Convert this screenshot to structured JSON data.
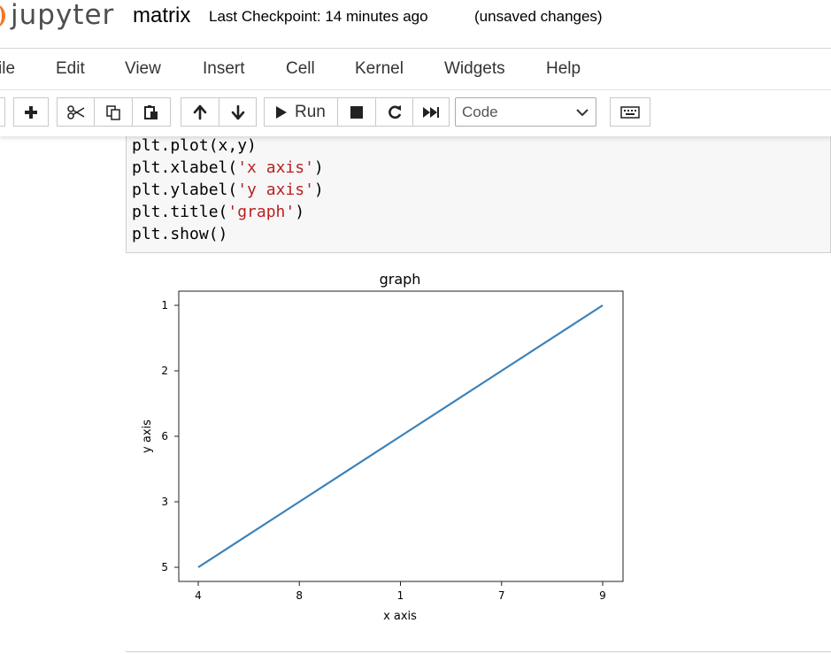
{
  "header": {
    "logo_text": "jupyter",
    "notebook_name": "matrix",
    "checkpoint": "Last Checkpoint: 14 minutes ago",
    "save_status": "(unsaved changes)"
  },
  "menu": [
    {
      "label": "ile"
    },
    {
      "label": "Edit"
    },
    {
      "label": "View"
    },
    {
      "label": "Insert"
    },
    {
      "label": "Cell"
    },
    {
      "label": "Kernel"
    },
    {
      "label": "Widgets"
    },
    {
      "label": "Help"
    }
  ],
  "toolbar": {
    "run_label": "Run",
    "cell_type": "Code",
    "icons": [
      "save-icon",
      "add-cell-icon",
      "cut-icon",
      "copy-icon",
      "paste-icon",
      "move-up-icon",
      "move-down-icon",
      "run-icon",
      "stop-icon",
      "restart-icon",
      "fast-forward-icon",
      "keyboard-icon"
    ]
  },
  "code_cell": {
    "lines": [
      {
        "pre": "plt.plot(x,y)",
        "str": "",
        "post": ""
      },
      {
        "pre": "plt.xlabel(",
        "str": "'x axis'",
        "post": ")"
      },
      {
        "pre": "plt.ylabel(",
        "str": "'y axis'",
        "post": ")"
      },
      {
        "pre": "plt.title(",
        "str": "'graph'",
        "post": ")"
      },
      {
        "pre": "plt.show()",
        "str": "",
        "post": ""
      }
    ]
  },
  "chart_data": {
    "type": "line",
    "title": "graph",
    "xlabel": "x axis",
    "ylabel": "y axis",
    "x_categories": [
      "4",
      "8",
      "1",
      "7",
      "9"
    ],
    "y_categories": [
      "5",
      "3",
      "6",
      "2",
      "1"
    ],
    "series": [
      {
        "x": [
          "4",
          "8",
          "1",
          "7",
          "9"
        ],
        "y": [
          "5",
          "3",
          "6",
          "2",
          "1"
        ],
        "color": "#3b82b9"
      }
    ],
    "y_order": "first category at bottom",
    "grid": false,
    "legend": "none"
  }
}
